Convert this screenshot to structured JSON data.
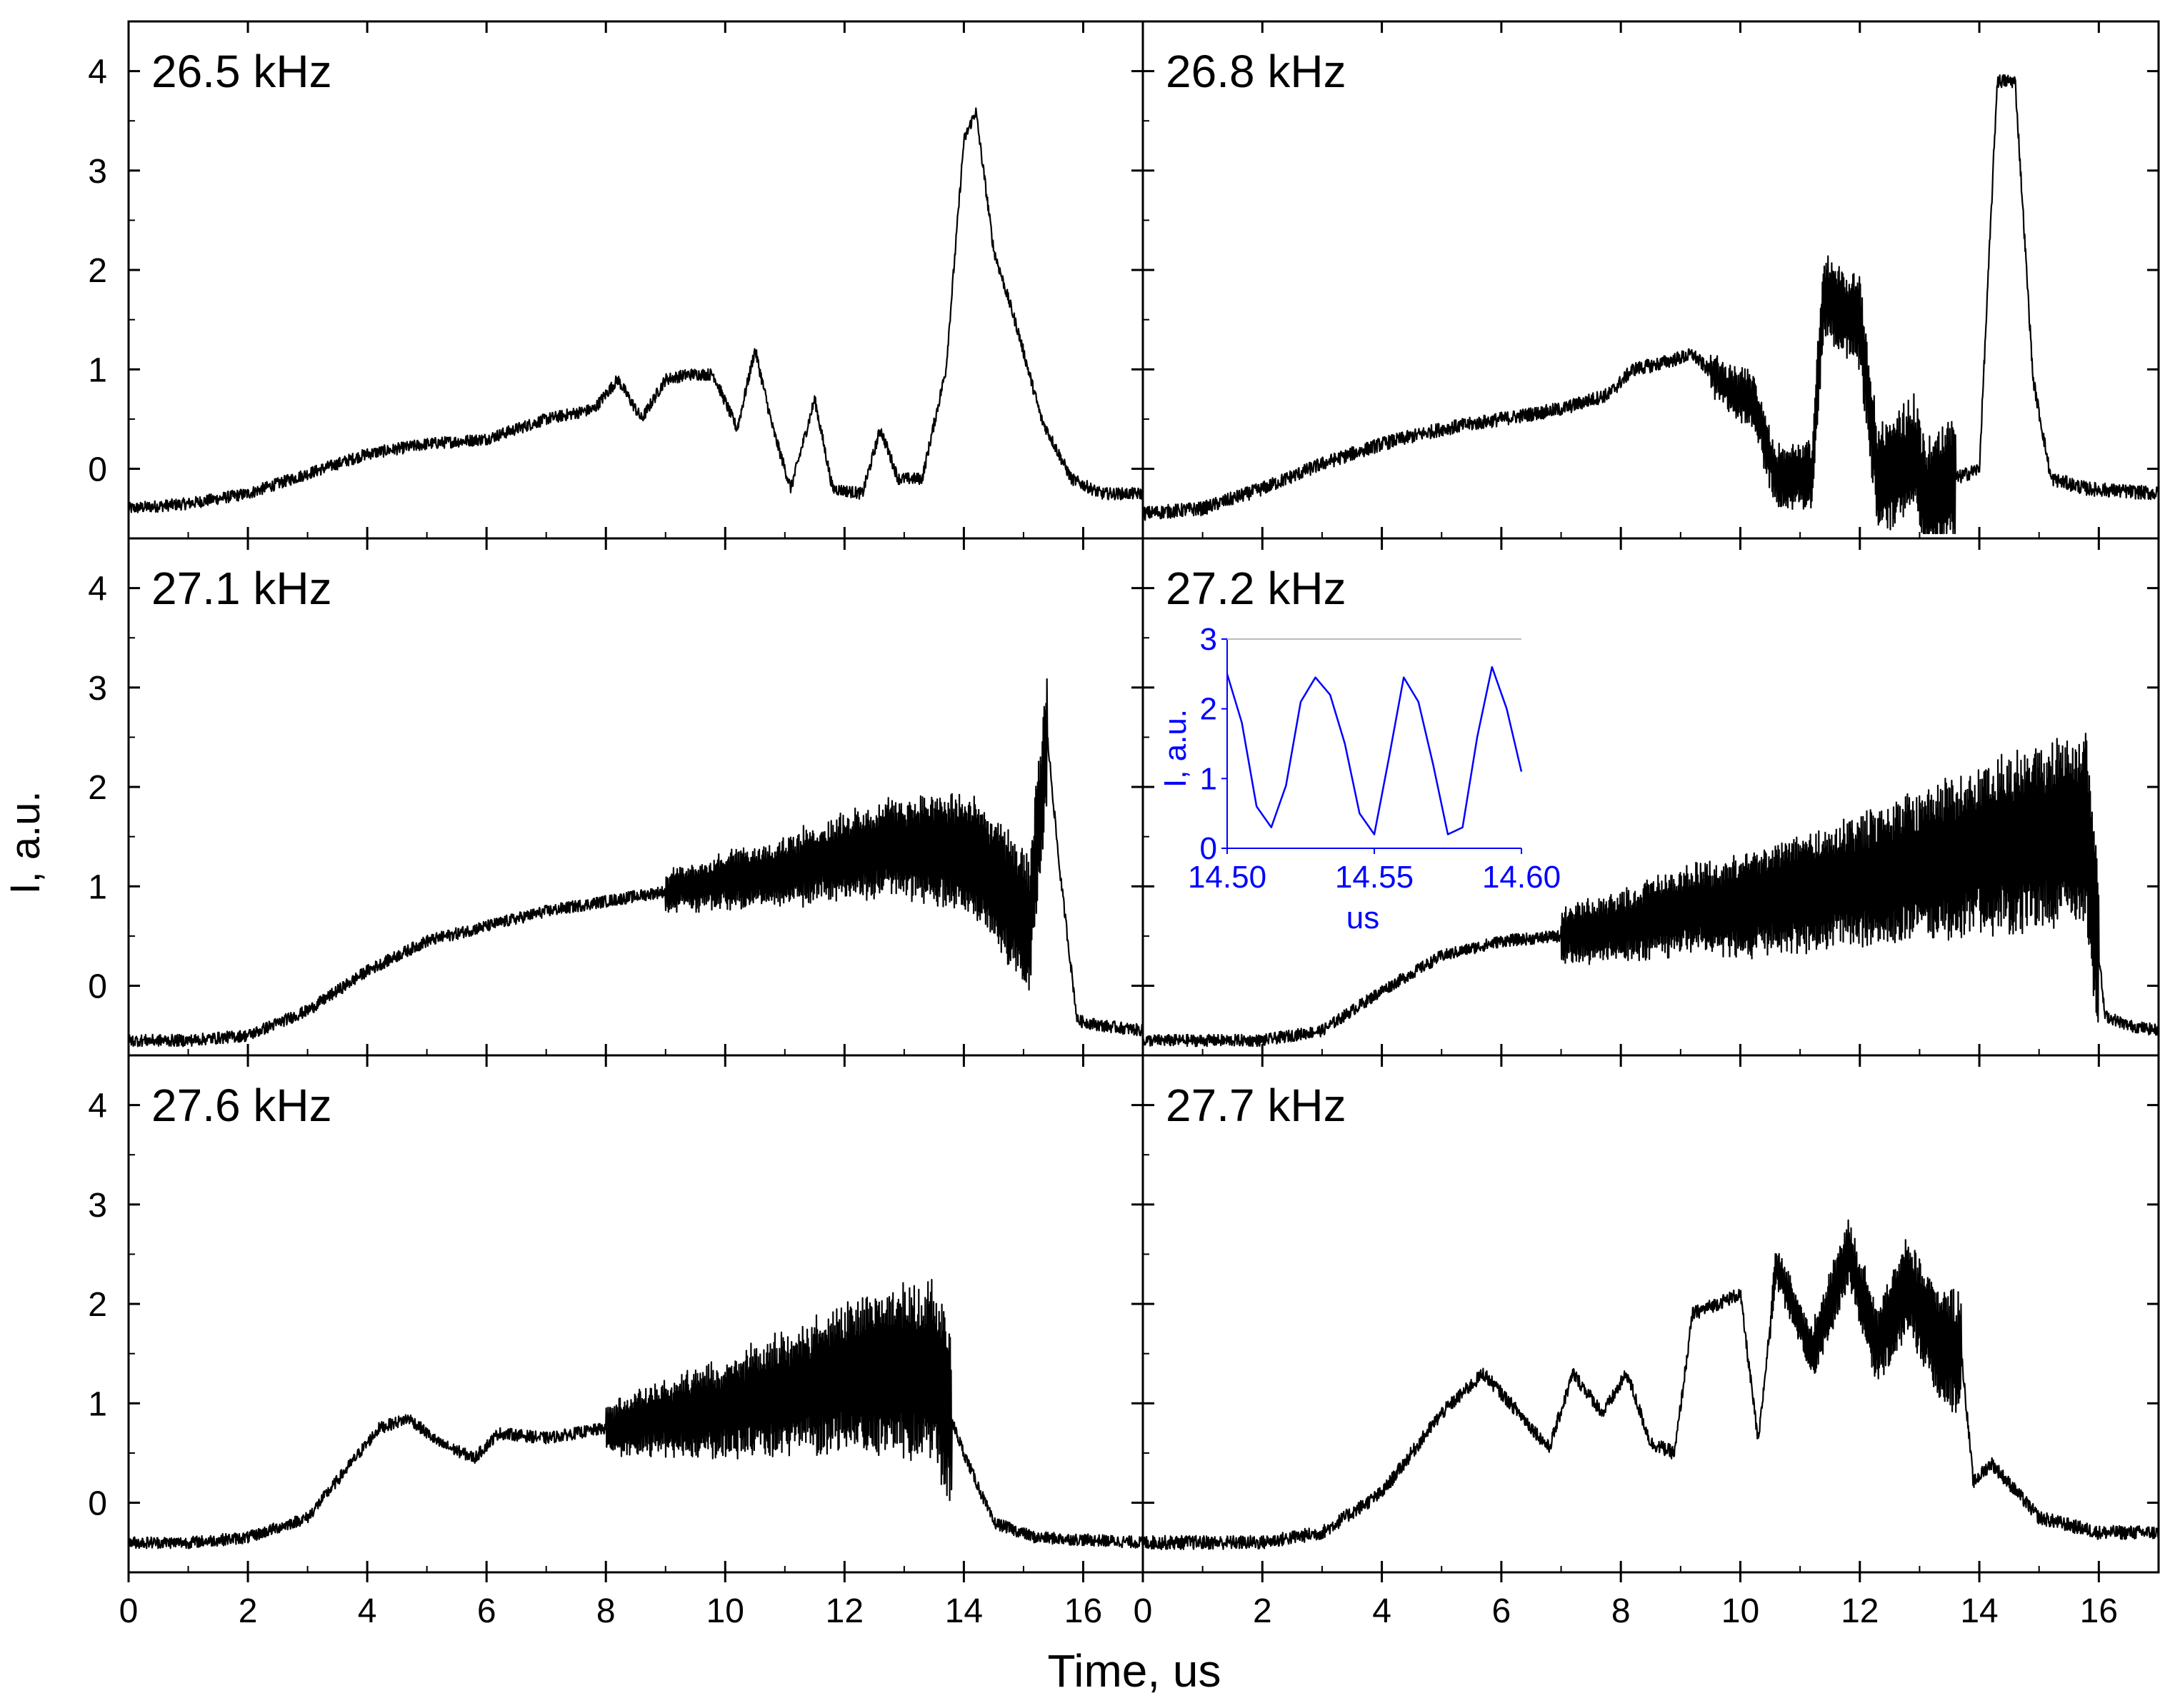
{
  "figure": {
    "ylabel": "I, a.u.",
    "xlabel": "Time, us"
  },
  "chart_data": [
    {
      "type": "line",
      "title": "26.5 kHz",
      "xlim": [
        0,
        17
      ],
      "ylim": [
        -0.7,
        4.5
      ],
      "xticks": [
        "0",
        "2",
        "4",
        "6",
        "8",
        "10",
        "12",
        "14",
        "16"
      ],
      "yticks": [
        "0",
        "1",
        "2",
        "3",
        "4"
      ],
      "series": [
        {
          "name": "26.5 kHz",
          "envelope": [
            [
              0,
              -0.4
            ],
            [
              1,
              -0.35
            ],
            [
              2,
              -0.25
            ],
            [
              3,
              -0.05
            ],
            [
              4,
              0.15
            ],
            [
              5,
              0.25
            ],
            [
              6,
              0.3
            ],
            [
              7,
              0.5
            ],
            [
              7.8,
              0.6
            ],
            [
              8.2,
              0.9
            ],
            [
              8.6,
              0.5
            ],
            [
              9,
              0.9
            ],
            [
              9.4,
              0.95
            ],
            [
              9.8,
              0.95
            ],
            [
              10.2,
              0.4
            ],
            [
              10.5,
              1.2
            ],
            [
              10.8,
              0.4
            ],
            [
              11.1,
              -0.2
            ],
            [
              11.5,
              0.7
            ],
            [
              11.8,
              -0.2
            ],
            [
              12.3,
              -0.25
            ],
            [
              12.6,
              0.4
            ],
            [
              12.9,
              -0.1
            ],
            [
              13.3,
              -0.1
            ],
            [
              13.7,
              1.0
            ],
            [
              14.0,
              3.3
            ],
            [
              14.2,
              3.6
            ],
            [
              14.5,
              2.2
            ],
            [
              14.9,
              1.4
            ],
            [
              15.3,
              0.5
            ],
            [
              15.8,
              -0.1
            ],
            [
              16.3,
              -0.25
            ],
            [
              17,
              -0.25
            ]
          ],
          "noise": 0.06,
          "fast_osc": []
        }
      ]
    },
    {
      "type": "line",
      "title": "26.8 kHz",
      "xlim": [
        0,
        17
      ],
      "ylim": [
        -0.7,
        4.5
      ],
      "xticks": [
        "0",
        "2",
        "4",
        "6",
        "8",
        "10",
        "12",
        "14",
        "16"
      ],
      "yticks": [
        "0",
        "1",
        "2",
        "3",
        "4"
      ],
      "series": [
        {
          "name": "26.8 kHz",
          "envelope": [
            [
              0,
              -0.45
            ],
            [
              1,
              -0.4
            ],
            [
              2,
              -0.2
            ],
            [
              3,
              0.05
            ],
            [
              4,
              0.25
            ],
            [
              5,
              0.4
            ],
            [
              6,
              0.5
            ],
            [
              7,
              0.6
            ],
            [
              7.8,
              0.75
            ],
            [
              8.2,
              1.0
            ],
            [
              8.6,
              1.05
            ],
            [
              9.2,
              1.15
            ],
            [
              9.8,
              0.8
            ],
            [
              10.2,
              0.7
            ],
            [
              10.6,
              -0.1
            ],
            [
              11.2,
              -0.05
            ],
            [
              11.4,
              1.8
            ],
            [
              11.6,
              1.6
            ],
            [
              12.0,
              1.5
            ],
            [
              12.3,
              -0.1
            ],
            [
              12.6,
              -0.05
            ],
            [
              12.9,
              0.2
            ],
            [
              13.1,
              -0.3
            ],
            [
              13.4,
              -0.2
            ],
            [
              13.6,
              -0.1
            ],
            [
              14.0,
              0.0
            ],
            [
              14.3,
              3.9
            ],
            [
              14.6,
              3.9
            ],
            [
              14.9,
              0.9
            ],
            [
              15.2,
              -0.1
            ],
            [
              15.8,
              -0.2
            ],
            [
              17,
              -0.25
            ]
          ],
          "noise": 0.07,
          "fast_osc": [
            [
              9.5,
              13.6,
              1.3,
              6
            ]
          ]
        }
      ]
    },
    {
      "type": "line",
      "title": "27.1 kHz",
      "xlim": [
        0,
        17
      ],
      "ylim": [
        -0.7,
        4.5
      ],
      "xticks": [
        "0",
        "2",
        "4",
        "6",
        "8",
        "10",
        "12",
        "14",
        "16"
      ],
      "yticks": [
        "0",
        "1",
        "2",
        "3",
        "4"
      ],
      "series": [
        {
          "name": "27.1 kHz",
          "envelope": [
            [
              0,
              -0.55
            ],
            [
              1,
              -0.55
            ],
            [
              2,
              -0.5
            ],
            [
              3,
              -0.25
            ],
            [
              4,
              0.15
            ],
            [
              5,
              0.45
            ],
            [
              6,
              0.6
            ],
            [
              7,
              0.75
            ],
            [
              8,
              0.85
            ],
            [
              9,
              0.95
            ],
            [
              10,
              1.05
            ],
            [
              11,
              1.15
            ],
            [
              12,
              1.3
            ],
            [
              13,
              1.4
            ],
            [
              14,
              1.35
            ],
            [
              14.6,
              1.0
            ],
            [
              15.1,
              0.6
            ],
            [
              15.4,
              2.5
            ],
            [
              15.6,
              1.2
            ],
            [
              15.9,
              -0.35
            ],
            [
              16.3,
              -0.4
            ],
            [
              17,
              -0.45
            ]
          ],
          "noise": 0.06,
          "fast_osc": [
            [
              9.0,
              15.4,
              1.4,
              4
            ]
          ]
        }
      ]
    },
    {
      "type": "line",
      "title": "27.2 kHz",
      "xlim": [
        0,
        17
      ],
      "ylim": [
        -0.7,
        4.5
      ],
      "xticks": [
        "0",
        "2",
        "4",
        "6",
        "8",
        "10",
        "12",
        "14",
        "16"
      ],
      "yticks": [
        "0",
        "1",
        "2",
        "3",
        "4"
      ],
      "series": [
        {
          "name": "27.2 kHz",
          "envelope": [
            [
              0,
              -0.55
            ],
            [
              1,
              -0.55
            ],
            [
              2,
              -0.55
            ],
            [
              3,
              -0.45
            ],
            [
              4,
              -0.05
            ],
            [
              5,
              0.3
            ],
            [
              6,
              0.45
            ],
            [
              7,
              0.5
            ],
            [
              8,
              0.6
            ],
            [
              9,
              0.75
            ],
            [
              10,
              0.8
            ],
            [
              11,
              0.95
            ],
            [
              12,
              1.05
            ],
            [
              13,
              1.2
            ],
            [
              14,
              1.35
            ],
            [
              15,
              1.5
            ],
            [
              15.8,
              1.55
            ],
            [
              16.1,
              -0.3
            ],
            [
              16.5,
              -0.4
            ],
            [
              17,
              -0.45
            ]
          ],
          "noise": 0.06,
          "fast_osc": [
            [
              7.0,
              16.0,
              2.0,
              3
            ]
          ]
        }
      ]
    },
    {
      "type": "line",
      "title": "27.6 kHz",
      "xlim": [
        0,
        17
      ],
      "ylim": [
        -0.7,
        4.5
      ],
      "xticks": [
        "0",
        "2",
        "4",
        "6",
        "8",
        "10",
        "12",
        "14",
        "16"
      ],
      "yticks": [
        "0",
        "1",
        "2",
        "3",
        "4"
      ],
      "series": [
        {
          "name": "27.6 kHz",
          "envelope": [
            [
              0,
              -0.4
            ],
            [
              1,
              -0.4
            ],
            [
              2,
              -0.35
            ],
            [
              3,
              -0.15
            ],
            [
              3.6,
              0.3
            ],
            [
              4.2,
              0.75
            ],
            [
              4.7,
              0.85
            ],
            [
              5.2,
              0.6
            ],
            [
              5.8,
              0.45
            ],
            [
              6.2,
              0.7
            ],
            [
              7,
              0.65
            ],
            [
              8,
              0.75
            ],
            [
              9,
              0.85
            ],
            [
              10,
              0.95
            ],
            [
              11,
              1.1
            ],
            [
              12,
              1.25
            ],
            [
              13,
              1.35
            ],
            [
              13.5,
              1.3
            ],
            [
              14,
              0.5
            ],
            [
              14.5,
              -0.2
            ],
            [
              15.2,
              -0.35
            ],
            [
              17,
              -0.4
            ]
          ],
          "noise": 0.06,
          "fast_osc": [
            [
              8.0,
              13.8,
              1.9,
              3
            ]
          ]
        }
      ]
    },
    {
      "type": "line",
      "title": "27.7 kHz",
      "xlim": [
        0,
        17
      ],
      "ylim": [
        -0.7,
        4.5
      ],
      "xticks": [
        "0",
        "2",
        "4",
        "6",
        "8",
        "10",
        "12",
        "14",
        "16"
      ],
      "yticks": [
        "0",
        "1",
        "2",
        "3",
        "4"
      ],
      "series": [
        {
          "name": "27.7 kHz",
          "envelope": [
            [
              0,
              -0.4
            ],
            [
              2,
              -0.4
            ],
            [
              3,
              -0.3
            ],
            [
              4,
              0.1
            ],
            [
              5,
              0.9
            ],
            [
              5.7,
              1.3
            ],
            [
              6.3,
              0.9
            ],
            [
              6.8,
              0.55
            ],
            [
              7.2,
              1.3
            ],
            [
              7.7,
              0.9
            ],
            [
              8.1,
              1.3
            ],
            [
              8.5,
              0.6
            ],
            [
              8.9,
              0.5
            ],
            [
              9.2,
              1.9
            ],
            [
              10,
              2.1
            ],
            [
              10.3,
              0.6
            ],
            [
              10.6,
              2.4
            ],
            [
              11.2,
              1.5
            ],
            [
              11.8,
              2.5
            ],
            [
              12.3,
              1.6
            ],
            [
              12.8,
              2.2
            ],
            [
              13.3,
              1.6
            ],
            [
              13.7,
              1.5
            ],
            [
              13.9,
              0.2
            ],
            [
              14.2,
              0.4
            ],
            [
              15,
              -0.15
            ],
            [
              16,
              -0.3
            ],
            [
              17,
              -0.3
            ]
          ],
          "noise": 0.07,
          "fast_osc": [
            [
              10.5,
              13.7,
              1.2,
              6
            ]
          ]
        }
      ]
    }
  ],
  "inset": {
    "panel": "27.2 kHz",
    "color": "#0000ff",
    "chart_data": {
      "type": "line",
      "xlabel": "us",
      "ylabel": "I, a.u.",
      "xlim": [
        14.5,
        14.6
      ],
      "ylim": [
        0,
        3
      ],
      "xticks": [
        "14.50",
        "14.55",
        "14.60"
      ],
      "yticks": [
        "0",
        "1",
        "2",
        "3"
      ],
      "period": 0.03,
      "x": [
        14.5,
        14.505,
        14.51,
        14.515,
        14.52,
        14.525,
        14.53,
        14.535,
        14.54,
        14.545,
        14.55,
        14.555,
        14.56,
        14.565,
        14.57,
        14.575,
        14.58,
        14.585,
        14.59,
        14.595,
        14.6
      ],
      "values": [
        2.5,
        1.8,
        0.6,
        0.3,
        0.9,
        2.1,
        2.45,
        2.2,
        1.5,
        0.5,
        0.2,
        1.3,
        2.45,
        2.1,
        1.2,
        0.2,
        0.3,
        1.6,
        2.6,
        2.0,
        1.1
      ]
    }
  }
}
